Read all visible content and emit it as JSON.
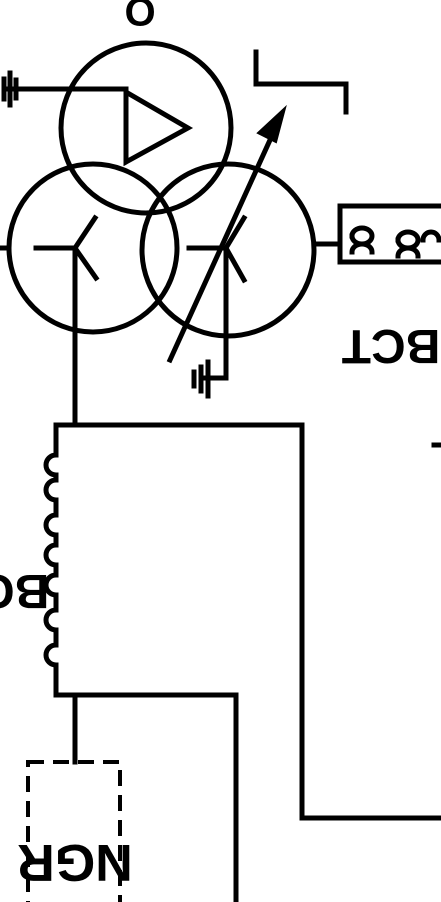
{
  "labels": {
    "bct_right": "BCT",
    "bct_left": "BCT",
    "ngr": "NGR",
    "top_edge": "O"
  }
}
